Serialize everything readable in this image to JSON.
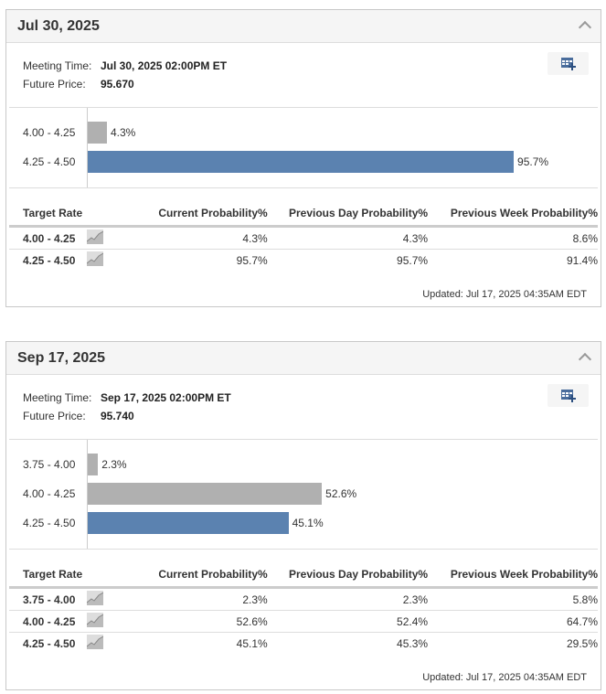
{
  "labels": {
    "meeting_time": "Meeting Time:",
    "future_price": "Future Price:",
    "updated": "Updated: Jul 17, 2025 04:35AM EDT"
  },
  "columns": [
    "Target Rate",
    "Current Probability%",
    "Previous Day Probability%",
    "Previous Week Probability%"
  ],
  "colors": {
    "current": "#5b82b0",
    "other": "#b0b0b0"
  },
  "meetings": [
    {
      "title": "Jul 30, 2025",
      "meeting_time": "Jul 30, 2025 02:00PM ET",
      "future_price": "95.670",
      "chart_data": {
        "type": "bar",
        "orientation": "horizontal",
        "categories": [
          "4.00 - 4.25",
          "4.25 - 4.50"
        ],
        "values": [
          4.3,
          95.7
        ],
        "labels": [
          "4.3%",
          "95.7%"
        ],
        "highlight": [
          false,
          true
        ]
      },
      "rows": [
        [
          "4.00 - 4.25",
          "4.3%",
          "4.3%",
          "8.6%"
        ],
        [
          "4.25 - 4.50",
          "95.7%",
          "95.7%",
          "91.4%"
        ]
      ]
    },
    {
      "title": "Sep 17, 2025",
      "meeting_time": "Sep 17, 2025 02:00PM ET",
      "future_price": "95.740",
      "chart_data": {
        "type": "bar",
        "orientation": "horizontal",
        "categories": [
          "3.75 - 4.00",
          "4.00 - 4.25",
          "4.25 - 4.50"
        ],
        "values": [
          2.3,
          52.6,
          45.1
        ],
        "labels": [
          "2.3%",
          "52.6%",
          "45.1%"
        ],
        "highlight": [
          false,
          false,
          true
        ]
      },
      "rows": [
        [
          "3.75 - 4.00",
          "2.3%",
          "2.3%",
          "5.8%"
        ],
        [
          "4.00 - 4.25",
          "52.6%",
          "52.4%",
          "64.7%"
        ],
        [
          "4.25 - 4.50",
          "45.1%",
          "45.3%",
          "29.5%"
        ]
      ]
    }
  ]
}
